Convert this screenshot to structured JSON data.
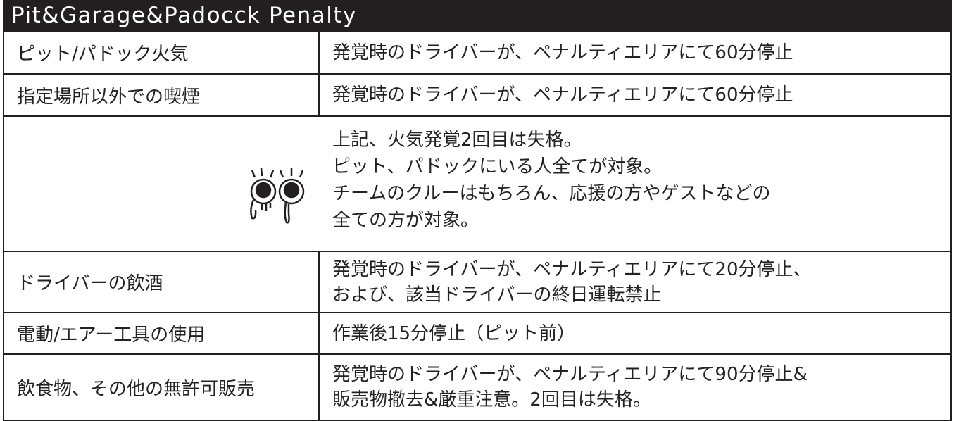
{
  "header": {
    "title": "Pit&Garage&Padocck Penalty"
  },
  "table": {
    "rows": [
      {
        "item": "ピット/パドック火気",
        "penalty": [
          "発覚時のドライバーが、ペナルティエリアにて60分停止"
        ]
      },
      {
        "item": "指定場所以外での喫煙",
        "penalty": [
          "発覚時のドライバーが、ペナルティエリアにて60分停止"
        ]
      },
      {
        "item": "ドライバーの飲酒",
        "penalty": [
          "発覚時のドライバーが、ペナルティエリアにて20分停止、",
          "および、該当ドライバーの終日運転禁止"
        ]
      },
      {
        "item": "電動/エアー工具の使用",
        "penalty": [
          "作業後15分停止（ピット前）"
        ]
      },
      {
        "item": "飲食物、その他の無許可販売",
        "penalty": [
          "発覚時のドライバーが、ペナルティエリアにて90分停止&",
          "販売物撤去&厳重注意。2回目は失格。"
        ]
      }
    ]
  },
  "note": {
    "lines": [
      "上記、火気発覚2回目は失格。",
      "ピット、パドックにいる人全てが対象。",
      "チームのクルーはもちろん、応援の方やゲストなどの",
      "全ての方が対象。"
    ]
  }
}
